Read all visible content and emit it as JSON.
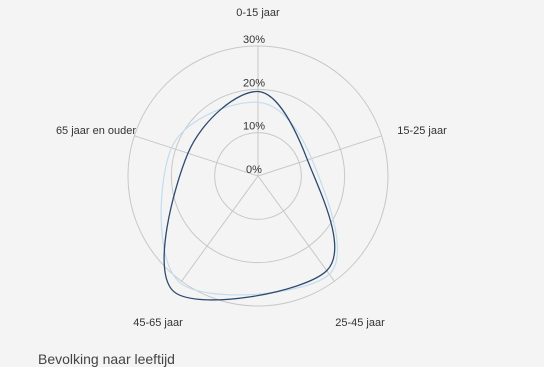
{
  "chart_data": {
    "type": "radar",
    "categories": [
      "0-15 jaar",
      "15-25 jaar",
      "25-45 jaar",
      "45-65 jaar",
      "65 jaar en ouder"
    ],
    "rlim": [
      0,
      30
    ],
    "ticks": [
      0,
      10,
      20,
      30
    ],
    "tick_labels": [
      "0%",
      "10%",
      "20%",
      "30%"
    ],
    "grid": true,
    "series": [
      {
        "values": [
          19.5,
          12,
          27,
          33,
          17
        ],
        "color": "#2c4a6e"
      },
      {
        "values": [
          17,
          13,
          28,
          30.5,
          21
        ],
        "color": "#c5dcec"
      }
    ]
  },
  "legend_caption": "Bevolking naar leeftijd"
}
